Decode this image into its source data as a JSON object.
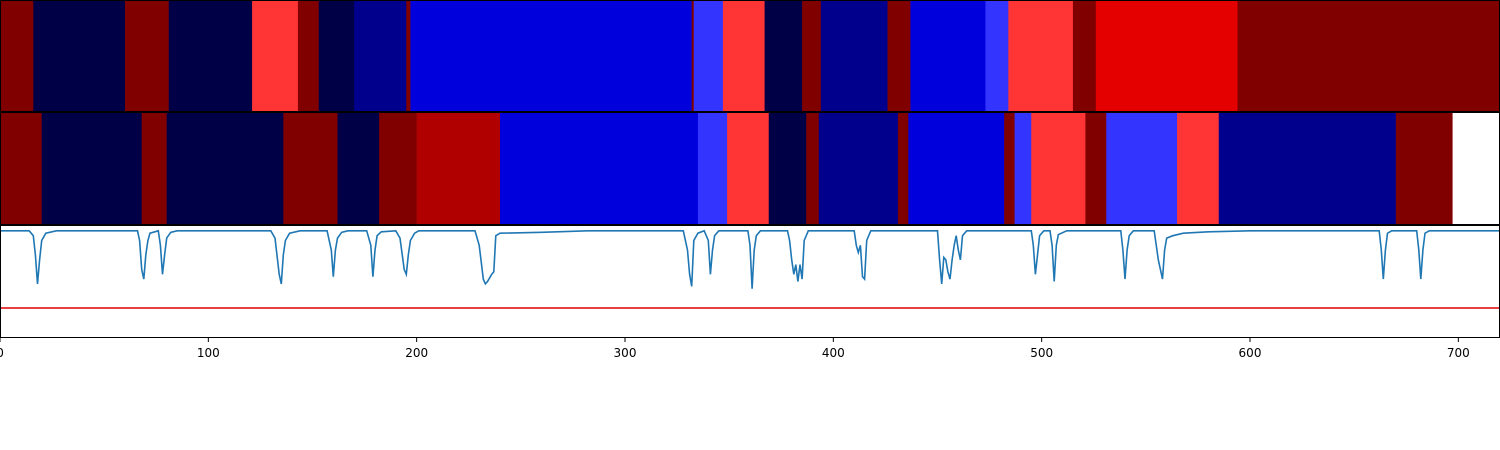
{
  "chart_data": {
    "type": "heatmap",
    "title": "",
    "xlabel": "",
    "ylabel": "",
    "xlim": [
      0,
      720
    ],
    "xticks": [
      0,
      100,
      200,
      300,
      400,
      500,
      600,
      700
    ],
    "xtick_labels": [
      "0",
      "100",
      "200",
      "300",
      "400",
      "500",
      "600",
      "700"
    ],
    "grid": false,
    "colors": {
      "maroon": "#800000",
      "navy_dark": "#000046",
      "navy": "#00008c",
      "blue": "#0000dc",
      "blue_light": "#3434ff",
      "red_light": "#ff3434",
      "red": "#e50000",
      "red_dark": "#b00000",
      "line": "#1f77b4",
      "threshold": "#e00000"
    },
    "bands": [
      {
        "name": "row-1",
        "segments": [
          {
            "start": 0,
            "end": 16,
            "color": "maroon"
          },
          {
            "start": 16,
            "end": 60,
            "color": "navy_dark"
          },
          {
            "start": 60,
            "end": 81,
            "color": "maroon"
          },
          {
            "start": 81,
            "end": 121,
            "color": "navy_dark"
          },
          {
            "start": 121,
            "end": 143,
            "color": "red_light"
          },
          {
            "start": 143,
            "end": 153,
            "color": "maroon"
          },
          {
            "start": 153,
            "end": 170,
            "color": "navy_dark"
          },
          {
            "start": 170,
            "end": 195,
            "color": "navy"
          },
          {
            "start": 195,
            "end": 197,
            "color": "maroon"
          },
          {
            "start": 197,
            "end": 332,
            "color": "blue"
          },
          {
            "start": 332,
            "end": 333,
            "color": "maroon"
          },
          {
            "start": 333,
            "end": 347,
            "color": "blue_light"
          },
          {
            "start": 347,
            "end": 367,
            "color": "red_light"
          },
          {
            "start": 367,
            "end": 385,
            "color": "navy_dark"
          },
          {
            "start": 385,
            "end": 394,
            "color": "maroon"
          },
          {
            "start": 394,
            "end": 426,
            "color": "navy"
          },
          {
            "start": 426,
            "end": 437,
            "color": "maroon"
          },
          {
            "start": 437,
            "end": 473,
            "color": "blue"
          },
          {
            "start": 473,
            "end": 484,
            "color": "blue_light"
          },
          {
            "start": 484,
            "end": 515,
            "color": "red_light"
          },
          {
            "start": 515,
            "end": 526,
            "color": "maroon"
          },
          {
            "start": 526,
            "end": 594,
            "color": "red"
          },
          {
            "start": 594,
            "end": 720,
            "color": "maroon"
          }
        ]
      },
      {
        "name": "row-2",
        "segments": [
          {
            "start": 0,
            "end": 20,
            "color": "maroon"
          },
          {
            "start": 20,
            "end": 68,
            "color": "navy_dark"
          },
          {
            "start": 68,
            "end": 80,
            "color": "maroon"
          },
          {
            "start": 80,
            "end": 136,
            "color": "navy_dark"
          },
          {
            "start": 136,
            "end": 162,
            "color": "maroon"
          },
          {
            "start": 162,
            "end": 182,
            "color": "navy_dark"
          },
          {
            "start": 182,
            "end": 200,
            "color": "maroon"
          },
          {
            "start": 200,
            "end": 240,
            "color": "red_dark"
          },
          {
            "start": 240,
            "end": 335,
            "color": "blue"
          },
          {
            "start": 335,
            "end": 349,
            "color": "blue_light"
          },
          {
            "start": 349,
            "end": 369,
            "color": "red_light"
          },
          {
            "start": 369,
            "end": 387,
            "color": "navy_dark"
          },
          {
            "start": 387,
            "end": 393,
            "color": "maroon"
          },
          {
            "start": 393,
            "end": 431,
            "color": "navy"
          },
          {
            "start": 431,
            "end": 436,
            "color": "maroon"
          },
          {
            "start": 436,
            "end": 482,
            "color": "blue"
          },
          {
            "start": 482,
            "end": 487,
            "color": "maroon"
          },
          {
            "start": 487,
            "end": 495,
            "color": "blue_light"
          },
          {
            "start": 495,
            "end": 521,
            "color": "red_light"
          },
          {
            "start": 521,
            "end": 531,
            "color": "maroon"
          },
          {
            "start": 531,
            "end": 565,
            "color": "blue_light"
          },
          {
            "start": 565,
            "end": 585,
            "color": "red_light"
          },
          {
            "start": 585,
            "end": 670,
            "color": "navy"
          },
          {
            "start": 670,
            "end": 697,
            "color": "maroon"
          }
        ]
      }
    ],
    "line_panel": {
      "ylim": [
        -2.2,
        0.1
      ],
      "threshold": -1.6,
      "points": [
        [
          0,
          0
        ],
        [
          14,
          0
        ],
        [
          16,
          -0.1
        ],
        [
          17,
          -0.5
        ],
        [
          18,
          -1.1
        ],
        [
          19,
          -0.6
        ],
        [
          20,
          -0.2
        ],
        [
          22,
          -0.05
        ],
        [
          27,
          0
        ],
        [
          66,
          0
        ],
        [
          67,
          -0.2
        ],
        [
          68,
          -0.8
        ],
        [
          69,
          -1.0
        ],
        [
          70,
          -0.5
        ],
        [
          71,
          -0.2
        ],
        [
          72,
          -0.05
        ],
        [
          76,
          0
        ],
        [
          77,
          -0.3
        ],
        [
          78,
          -0.9
        ],
        [
          79,
          -0.5
        ],
        [
          80,
          -0.15
        ],
        [
          82,
          -0.03
        ],
        [
          85,
          0
        ],
        [
          130,
          0
        ],
        [
          132,
          -0.15
        ],
        [
          134,
          -0.9
        ],
        [
          135,
          -1.1
        ],
        [
          136,
          -0.5
        ],
        [
          137,
          -0.2
        ],
        [
          139,
          -0.05
        ],
        [
          144,
          0
        ],
        [
          157,
          0
        ],
        [
          159,
          -0.4
        ],
        [
          160,
          -0.95
        ],
        [
          161,
          -0.4
        ],
        [
          162,
          -0.15
        ],
        [
          164,
          -0.03
        ],
        [
          167,
          0
        ],
        [
          176,
          0
        ],
        [
          178,
          -0.3
        ],
        [
          179,
          -0.95
        ],
        [
          180,
          -0.4
        ],
        [
          181,
          -0.1
        ],
        [
          183,
          -0.02
        ],
        [
          190,
          0
        ],
        [
          192,
          -0.15
        ],
        [
          194,
          -0.8
        ],
        [
          195,
          -0.9
        ],
        [
          196,
          -0.5
        ],
        [
          197,
          -0.2
        ],
        [
          199,
          -0.05
        ],
        [
          201,
          0
        ],
        [
          228,
          0
        ],
        [
          230,
          -0.3
        ],
        [
          232,
          -1.0
        ],
        [
          233,
          -1.1
        ],
        [
          234,
          -1.05
        ],
        [
          236,
          -0.9
        ],
        [
          237,
          -0.85
        ],
        [
          238,
          -0.1
        ],
        [
          240,
          -0.05
        ],
        [
          260,
          -0.03
        ],
        [
          282,
          0
        ],
        [
          328,
          0
        ],
        [
          330,
          -0.4
        ],
        [
          331,
          -0.9
        ],
        [
          332,
          -1.15
        ],
        [
          333,
          -0.2
        ],
        [
          335,
          -0.05
        ],
        [
          338,
          0
        ],
        [
          340,
          -0.2
        ],
        [
          341,
          -0.9
        ],
        [
          342,
          -0.4
        ],
        [
          343,
          -0.1
        ],
        [
          345,
          0
        ],
        [
          359,
          0
        ],
        [
          360,
          -0.3
        ],
        [
          361,
          -1.2
        ],
        [
          362,
          -0.4
        ],
        [
          363,
          -0.1
        ],
        [
          365,
          0
        ],
        [
          378,
          0
        ],
        [
          379,
          -0.2
        ],
        [
          380,
          -0.6
        ],
        [
          381,
          -0.9
        ],
        [
          382,
          -0.7
        ],
        [
          383,
          -1.05
        ],
        [
          384,
          -0.7
        ],
        [
          385,
          -1.0
        ],
        [
          386,
          -0.2
        ],
        [
          388,
          0
        ],
        [
          410,
          0
        ],
        [
          411,
          -0.3
        ],
        [
          412,
          -0.45
        ],
        [
          413,
          -0.3
        ],
        [
          414,
          -0.95
        ],
        [
          415,
          -1.0
        ],
        [
          416,
          -0.2
        ],
        [
          418,
          0
        ],
        [
          450,
          0
        ],
        [
          451,
          -0.6
        ],
        [
          452,
          -1.1
        ],
        [
          453,
          -0.55
        ],
        [
          454,
          -0.6
        ],
        [
          455,
          -0.85
        ],
        [
          456,
          -1.0
        ],
        [
          457,
          -0.6
        ],
        [
          458,
          -0.3
        ],
        [
          459,
          -0.1
        ],
        [
          460,
          -0.4
        ],
        [
          461,
          -0.6
        ],
        [
          462,
          -0.1
        ],
        [
          464,
          0
        ],
        [
          495,
          0
        ],
        [
          496,
          -0.3
        ],
        [
          497,
          -0.9
        ],
        [
          498,
          -0.5
        ],
        [
          499,
          -0.1
        ],
        [
          501,
          0
        ],
        [
          504,
          0
        ],
        [
          505,
          -0.3
        ],
        [
          506,
          -1.05
        ],
        [
          507,
          -0.3
        ],
        [
          508,
          -0.08
        ],
        [
          512,
          0
        ],
        [
          538,
          0
        ],
        [
          539,
          -0.4
        ],
        [
          540,
          -1.0
        ],
        [
          541,
          -0.4
        ],
        [
          542,
          -0.1
        ],
        [
          544,
          0
        ],
        [
          554,
          0
        ],
        [
          556,
          -0.6
        ],
        [
          558,
          -1.0
        ],
        [
          559,
          -0.4
        ],
        [
          560,
          -0.15
        ],
        [
          563,
          -0.1
        ],
        [
          568,
          -0.05
        ],
        [
          580,
          -0.02
        ],
        [
          600,
          0
        ],
        [
          662,
          0
        ],
        [
          663,
          -0.4
        ],
        [
          664,
          -1.0
        ],
        [
          665,
          -0.4
        ],
        [
          666,
          -0.05
        ],
        [
          668,
          0
        ],
        [
          680,
          0
        ],
        [
          681,
          -0.4
        ],
        [
          682,
          -1.0
        ],
        [
          683,
          -0.4
        ],
        [
          684,
          -0.05
        ],
        [
          686,
          0
        ],
        [
          720,
          0
        ]
      ]
    }
  }
}
